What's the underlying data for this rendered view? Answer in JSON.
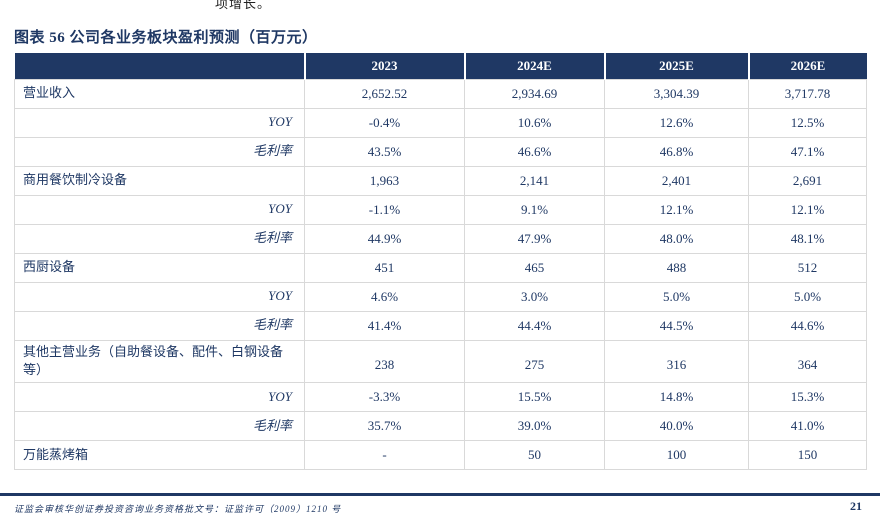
{
  "page": {
    "top_fragment": "项增长。"
  },
  "figure": {
    "title": "图表 56  公司各业务板块盈利预测（百万元）"
  },
  "table": {
    "columns": [
      "",
      "2023",
      "2024E",
      "2025E",
      "2026E"
    ],
    "rows": [
      {
        "label": "营业收入",
        "type": "main",
        "values": [
          "2,652.52",
          "2,934.69",
          "3,304.39",
          "3,717.78"
        ]
      },
      {
        "label": "YOY",
        "type": "sub",
        "values": [
          "-0.4%",
          "10.6%",
          "12.6%",
          "12.5%"
        ]
      },
      {
        "label": "毛利率",
        "type": "sub",
        "values": [
          "43.5%",
          "46.6%",
          "46.8%",
          "47.1%"
        ]
      },
      {
        "label": "商用餐饮制冷设备",
        "type": "main",
        "values": [
          "1,963",
          "2,141",
          "2,401",
          "2,691"
        ]
      },
      {
        "label": "YOY",
        "type": "sub",
        "values": [
          "-1.1%",
          "9.1%",
          "12.1%",
          "12.1%"
        ]
      },
      {
        "label": "毛利率",
        "type": "sub",
        "values": [
          "44.9%",
          "47.9%",
          "48.0%",
          "48.1%"
        ]
      },
      {
        "label": "西厨设备",
        "type": "main",
        "values": [
          "451",
          "465",
          "488",
          "512"
        ]
      },
      {
        "label": "YOY",
        "type": "sub",
        "values": [
          "4.6%",
          "3.0%",
          "5.0%",
          "5.0%"
        ]
      },
      {
        "label": "毛利率",
        "type": "sub",
        "values": [
          "41.4%",
          "44.4%",
          "44.5%",
          "44.6%"
        ]
      },
      {
        "label": "其他主营业务（自助餐设备、配件、白钢设备等）",
        "type": "main",
        "values": [
          "238",
          "275",
          "316",
          "364"
        ]
      },
      {
        "label": "YOY",
        "type": "sub",
        "values": [
          "-3.3%",
          "15.5%",
          "14.8%",
          "15.3%"
        ]
      },
      {
        "label": "毛利率",
        "type": "sub",
        "values": [
          "35.7%",
          "39.0%",
          "40.0%",
          "41.0%"
        ]
      },
      {
        "label": "万能蒸烤箱",
        "type": "main",
        "values": [
          "-",
          "50",
          "100",
          "150"
        ]
      }
    ]
  },
  "footer": {
    "license": "证监会审核华创证券投资咨询业务资格批文号：证监许可（2009）1210 号",
    "page_number": "21"
  },
  "colors": {
    "accent_navy": "#1f3864",
    "row_border": "#d9d9d9"
  }
}
